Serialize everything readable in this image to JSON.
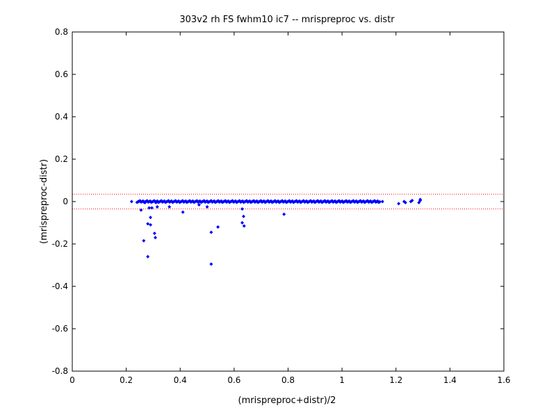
{
  "chart_data": {
    "type": "scatter",
    "title": "303v2 rh FS fwhm10 ic7 -- mrispreproc vs. distr",
    "xlabel": "(mrispreproc+distr)/2",
    "ylabel": "(mrispreproc-distr)",
    "xlim": [
      0,
      1.6
    ],
    "ylim": [
      -0.8,
      0.8
    ],
    "xticks": [
      "0",
      "0.2",
      "0.4",
      "0.6",
      "0.8",
      "1",
      "1.2",
      "1.4",
      "1.6"
    ],
    "yticks": [
      "-0.8",
      "-0.6",
      "-0.4",
      "-0.2",
      "0",
      "0.2",
      "0.4",
      "0.6",
      "0.8"
    ],
    "grid": false,
    "marker_color": "#0000ff",
    "reference_lines": [
      {
        "y": 0.035,
        "color": "#ff0000",
        "style": "dotted"
      },
      {
        "y": -0.035,
        "color": "#ff0000",
        "style": "dotted"
      }
    ],
    "series": [
      {
        "points": [
          [
            0.22,
            0.0
          ],
          [
            0.245,
            0.0
          ],
          [
            0.255,
            -0.04
          ],
          [
            0.265,
            -0.185
          ],
          [
            0.27,
            -0.005
          ],
          [
            0.28,
            -0.26
          ],
          [
            0.28,
            -0.105
          ],
          [
            0.285,
            -0.03
          ],
          [
            0.29,
            -0.075
          ],
          [
            0.29,
            -0.11
          ],
          [
            0.295,
            -0.03
          ],
          [
            0.305,
            -0.15
          ],
          [
            0.308,
            -0.17
          ],
          [
            0.31,
            -0.005
          ],
          [
            0.315,
            -0.025
          ],
          [
            0.36,
            -0.025
          ],
          [
            0.41,
            -0.05
          ],
          [
            0.47,
            -0.015
          ],
          [
            0.5,
            -0.025
          ],
          [
            0.515,
            -0.145
          ],
          [
            0.515,
            -0.295
          ],
          [
            0.54,
            -0.12
          ],
          [
            0.63,
            -0.035
          ],
          [
            0.63,
            -0.1
          ],
          [
            0.635,
            -0.07
          ],
          [
            0.637,
            -0.115
          ],
          [
            0.785,
            -0.06
          ],
          [
            1.13,
            0.0
          ],
          [
            1.15,
            0.0
          ],
          [
            1.21,
            -0.01
          ],
          [
            1.23,
            0.0
          ],
          [
            1.235,
            -0.005
          ],
          [
            1.255,
            0.0
          ],
          [
            1.26,
            0.005
          ],
          [
            1.285,
            -0.005
          ],
          [
            1.29,
            0.005
          ],
          [
            1.29,
            0.01
          ]
        ],
        "band": {
          "x_start": 0.24,
          "x_end": 1.14,
          "count": 240
        }
      }
    ]
  }
}
